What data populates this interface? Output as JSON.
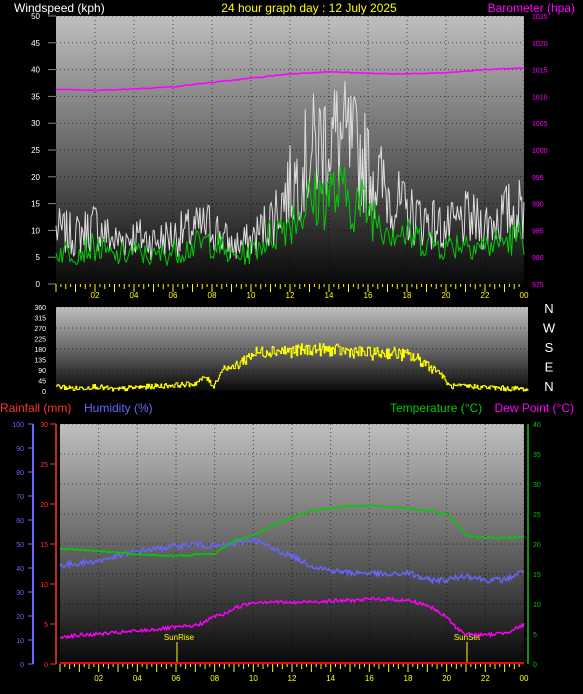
{
  "header": {
    "left_title": "Windspeed (kph)",
    "center_title": "24 hour graph day : 12 July 2025",
    "right_title": "Barometer (hpa)"
  },
  "labels": {
    "rainfall": "Rainfall (mm)",
    "humidity": "Humidity (%)",
    "temperature": "Temperature (°C)",
    "dewpoint": "Dew Point (°C)",
    "sunrise": "SunRise",
    "sunset": "SunSet"
  },
  "colors": {
    "windspeed": "#ffffff",
    "gust": "#dcdcdc",
    "wind_avg": "#00cc00",
    "barometer": "#ff00ff",
    "direction": "#ffff00",
    "rainfall": "#ff0000",
    "humidity": "#6666ff",
    "temperature": "#00cc00",
    "dewpoint": "#ff00ff",
    "time_axis": "#ffff00"
  },
  "chart_data": [
    {
      "type": "line",
      "name": "wind-barometer",
      "x_tick_labels": [
        "02",
        "04",
        "06",
        "08",
        "10",
        "12",
        "14",
        "16",
        "18",
        "20",
        "22",
        "00"
      ],
      "y_left": {
        "label": "Windspeed (kph)",
        "ylim": [
          0,
          50
        ],
        "ticks": [
          "0",
          "5",
          "10",
          "15",
          "20",
          "25",
          "30",
          "35",
          "40",
          "45",
          "50"
        ]
      },
      "y_right": {
        "label": "Barometer (hpa)",
        "ylim": [
          975,
          1025
        ],
        "ticks": [
          "975",
          "980",
          "985",
          "990",
          "995",
          "1000",
          "1005",
          "1010",
          "1015",
          "1020",
          "1025"
        ]
      },
      "series": [
        {
          "key": "gust",
          "hours": [
            0,
            1,
            2,
            3,
            4,
            5,
            6,
            7,
            8,
            9,
            10,
            11,
            12,
            13,
            14,
            15,
            16,
            17,
            18,
            19,
            20,
            21,
            22,
            23,
            24
          ],
          "values": [
            10,
            9,
            11,
            8,
            9,
            8,
            9,
            10,
            11,
            7,
            8,
            12,
            18,
            24,
            28,
            26,
            22,
            17,
            13,
            12,
            10,
            12,
            11,
            13,
            14
          ]
        },
        {
          "key": "wind_avg",
          "hours": [
            0,
            1,
            2,
            3,
            4,
            5,
            6,
            7,
            8,
            9,
            10,
            11,
            12,
            13,
            14,
            15,
            16,
            17,
            18,
            19,
            20,
            21,
            22,
            23,
            24
          ],
          "values": [
            6,
            6,
            7,
            5,
            6,
            5,
            6,
            7,
            8,
            5,
            6,
            9,
            12,
            15,
            17,
            16,
            14,
            11,
            9,
            8,
            7,
            8,
            7,
            8,
            9
          ]
        },
        {
          "key": "barometer",
          "hours": [
            0,
            2,
            4,
            6,
            8,
            10,
            12,
            14,
            16,
            18,
            20,
            22,
            24
          ],
          "values": [
            1011.3,
            1011.1,
            1011.4,
            1011.8,
            1012.6,
            1013.4,
            1014.2,
            1014.6,
            1014.3,
            1014.2,
            1014.4,
            1015.0,
            1015.3
          ]
        }
      ]
    },
    {
      "type": "line",
      "name": "wind-direction",
      "y_left": {
        "ylim": [
          0,
          360
        ],
        "ticks": [
          "0",
          "45",
          "90",
          "135",
          "180",
          "225",
          "270",
          "315",
          "360"
        ]
      },
      "y_right": {
        "ticks": [
          "N",
          "W",
          "S",
          "E",
          "N"
        ]
      },
      "series": [
        {
          "key": "direction",
          "hours": [
            0,
            1,
            2,
            3,
            4,
            5,
            6,
            7,
            7.6,
            8,
            8.5,
            9,
            10,
            11,
            12,
            13,
            14,
            15,
            16,
            17,
            18,
            19,
            19.5,
            20,
            21,
            22,
            23,
            23.5,
            24
          ],
          "values": [
            20,
            10,
            20,
            5,
            15,
            20,
            25,
            30,
            60,
            20,
            100,
            100,
            160,
            175,
            170,
            180,
            175,
            170,
            160,
            165,
            150,
            110,
            80,
            20,
            20,
            15,
            10,
            10,
            5
          ]
        }
      ]
    },
    {
      "type": "line",
      "name": "temp-humidity-rain",
      "sunrise_hour": 6.05,
      "sunset_hour": 21.05,
      "y_humidity": {
        "label": "Humidity (%)",
        "ylim": [
          0,
          100
        ],
        "ticks": [
          "0",
          "10",
          "20",
          "30",
          "40",
          "50",
          "60",
          "70",
          "80",
          "90",
          "100"
        ]
      },
      "y_rainfall": {
        "label": "Rainfall (mm)",
        "ylim": [
          0,
          30
        ],
        "ticks": [
          "0",
          "5",
          "10",
          "15",
          "20",
          "25",
          "30"
        ]
      },
      "y_temperature": {
        "label": "Temperature (°C)",
        "ylim": [
          0,
          40
        ],
        "ticks": [
          "0",
          "5",
          "10",
          "15",
          "20",
          "25",
          "30",
          "35",
          "40"
        ]
      },
      "series": [
        {
          "key": "humidity",
          "hours": [
            0,
            1,
            2,
            3,
            4,
            5,
            6,
            7,
            8,
            9,
            10,
            11,
            12,
            13,
            14,
            15,
            16,
            17,
            18,
            19,
            20,
            21,
            22,
            23,
            24
          ],
          "values": [
            41,
            42,
            43,
            45,
            47,
            48,
            49,
            50,
            49,
            50,
            52,
            48,
            45,
            41,
            39,
            38,
            38,
            37,
            38,
            35,
            35,
            37,
            35,
            35,
            39
          ]
        },
        {
          "key": "temperature",
          "hours": [
            0,
            1,
            2,
            3,
            4,
            5,
            6,
            7,
            8,
            8.5,
            9,
            10,
            11,
            12,
            13,
            14,
            15,
            16,
            17,
            18,
            19,
            20,
            20.5,
            21,
            22,
            23,
            24
          ],
          "values": [
            19.2,
            19,
            18.8,
            18.6,
            18.3,
            18.1,
            18,
            18.2,
            18.4,
            19.5,
            20.5,
            21.5,
            23,
            24.5,
            25.5,
            26,
            26.3,
            26.5,
            26.2,
            26,
            25.5,
            25,
            23.5,
            21.5,
            21,
            21,
            21.2
          ]
        },
        {
          "key": "dewpoint",
          "hours": [
            0,
            1,
            2,
            3,
            4,
            5,
            6,
            7,
            7.5,
            8,
            8.5,
            9,
            10,
            11,
            12,
            13,
            14,
            15,
            16,
            17,
            18,
            19,
            20,
            20.5,
            21,
            22,
            23,
            24
          ],
          "values": [
            4.5,
            4.8,
            5,
            5.2,
            5.5,
            5.8,
            6.1,
            6.4,
            7,
            8,
            8.3,
            9.3,
            10.3,
            10.4,
            10.2,
            10.4,
            10.5,
            10.6,
            10.8,
            10.8,
            10.6,
            9.8,
            7.8,
            6,
            5,
            4.8,
            5.2,
            6.5
          ]
        },
        {
          "key": "rainfall",
          "hours": [
            0,
            24
          ],
          "values": [
            0,
            0
          ]
        }
      ]
    }
  ]
}
